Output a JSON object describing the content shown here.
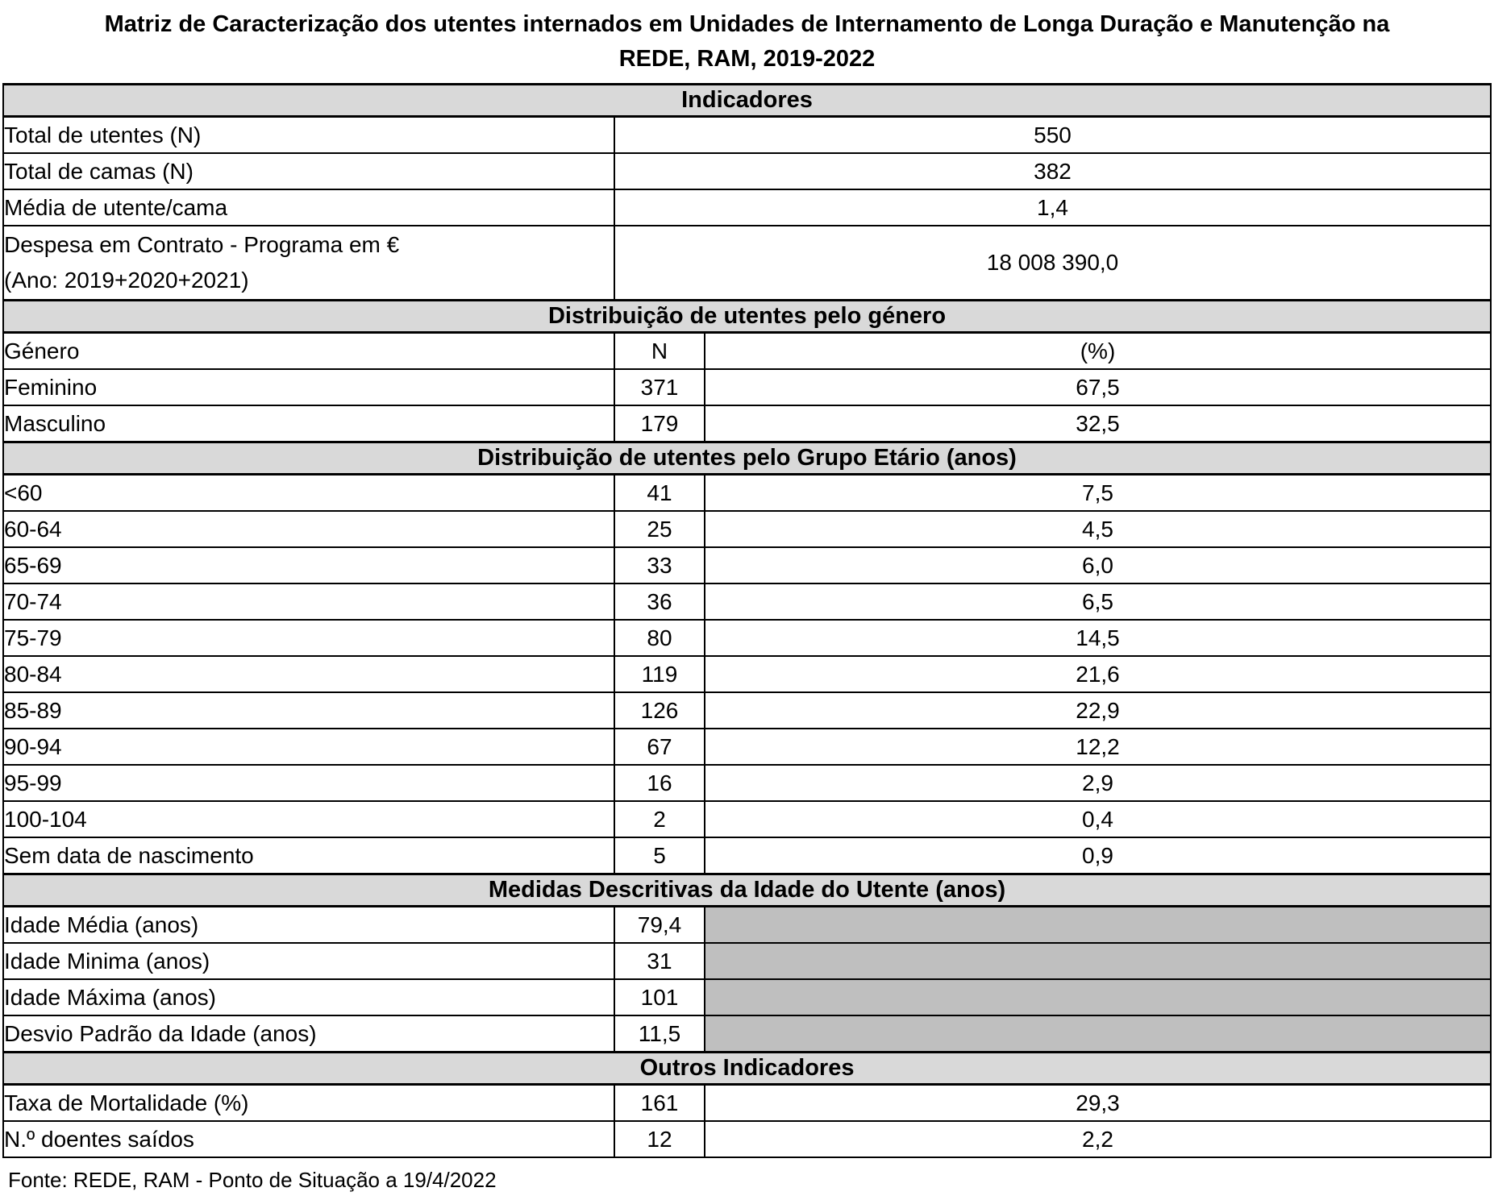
{
  "title": "Matriz de Caracterização dos utentes internados em Unidades de Internamento de Longa Duração e Manutenção na REDE, RAM, 2019-2022",
  "footer": "Fonte: REDE, RAM - Ponto de Situação a 19/4/2022",
  "colors": {
    "section_header_bg": "#d9d9d9",
    "shaded_cell_bg": "#bfbfbf",
    "border": "#000000",
    "text": "#000000"
  },
  "table": {
    "sections": [
      {
        "header": "Indicadores",
        "rows": [
          {
            "label": "Total de utentes (N)",
            "value": "550"
          },
          {
            "label": "Total de camas (N)",
            "value": "382"
          },
          {
            "label": "Média de utente/cama",
            "value": "1,4"
          },
          {
            "label_line1": "Despesa em Contrato - Programa em €",
            "label_line2": "(Ano: 2019+2020+2021)",
            "value": "18 008 390,0"
          }
        ]
      },
      {
        "header": "Distribuição de utentes pelo género",
        "columns": {
          "label": "Género",
          "n": "N",
          "pct": "(%)"
        },
        "rows": [
          {
            "label": "Feminino",
            "n": "371",
            "pct": "67,5"
          },
          {
            "label": "Masculino",
            "n": "179",
            "pct": "32,5"
          }
        ]
      },
      {
        "header": "Distribuição de utentes pelo Grupo Etário (anos)",
        "rows": [
          {
            "label": "<60",
            "n": "41",
            "pct": "7,5"
          },
          {
            "label": "60-64",
            "n": "25",
            "pct": "4,5"
          },
          {
            "label": "65-69",
            "n": "33",
            "pct": "6,0"
          },
          {
            "label": "70-74",
            "n": "36",
            "pct": "6,5"
          },
          {
            "label": "75-79",
            "n": "80",
            "pct": "14,5"
          },
          {
            "label": "80-84",
            "n": "119",
            "pct": "21,6"
          },
          {
            "label": "85-89",
            "n": "126",
            "pct": "22,9"
          },
          {
            "label": "90-94",
            "n": "67",
            "pct": "12,2"
          },
          {
            "label": "95-99",
            "n": "16",
            "pct": "2,9"
          },
          {
            "label": "100-104",
            "n": "2",
            "pct": "0,4"
          },
          {
            "label": "Sem data de nascimento",
            "n": "5",
            "pct": "0,9"
          }
        ]
      },
      {
        "header": "Medidas Descritivas da Idade do Utente (anos)",
        "rows": [
          {
            "label": "Idade Média (anos)",
            "n": "79,4"
          },
          {
            "label": "Idade Minima (anos)",
            "n": "31"
          },
          {
            "label": "Idade Máxima  (anos)",
            "n": "101"
          },
          {
            "label": "Desvio Padrão da Idade (anos)",
            "n": "11,5"
          }
        ]
      },
      {
        "header": "Outros Indicadores",
        "rows": [
          {
            "label": "Taxa de Mortalidade (%)",
            "n": "161",
            "pct": "29,3"
          },
          {
            "label": "N.º doentes saídos",
            "n": "12",
            "pct": "2,2"
          }
        ]
      }
    ]
  }
}
